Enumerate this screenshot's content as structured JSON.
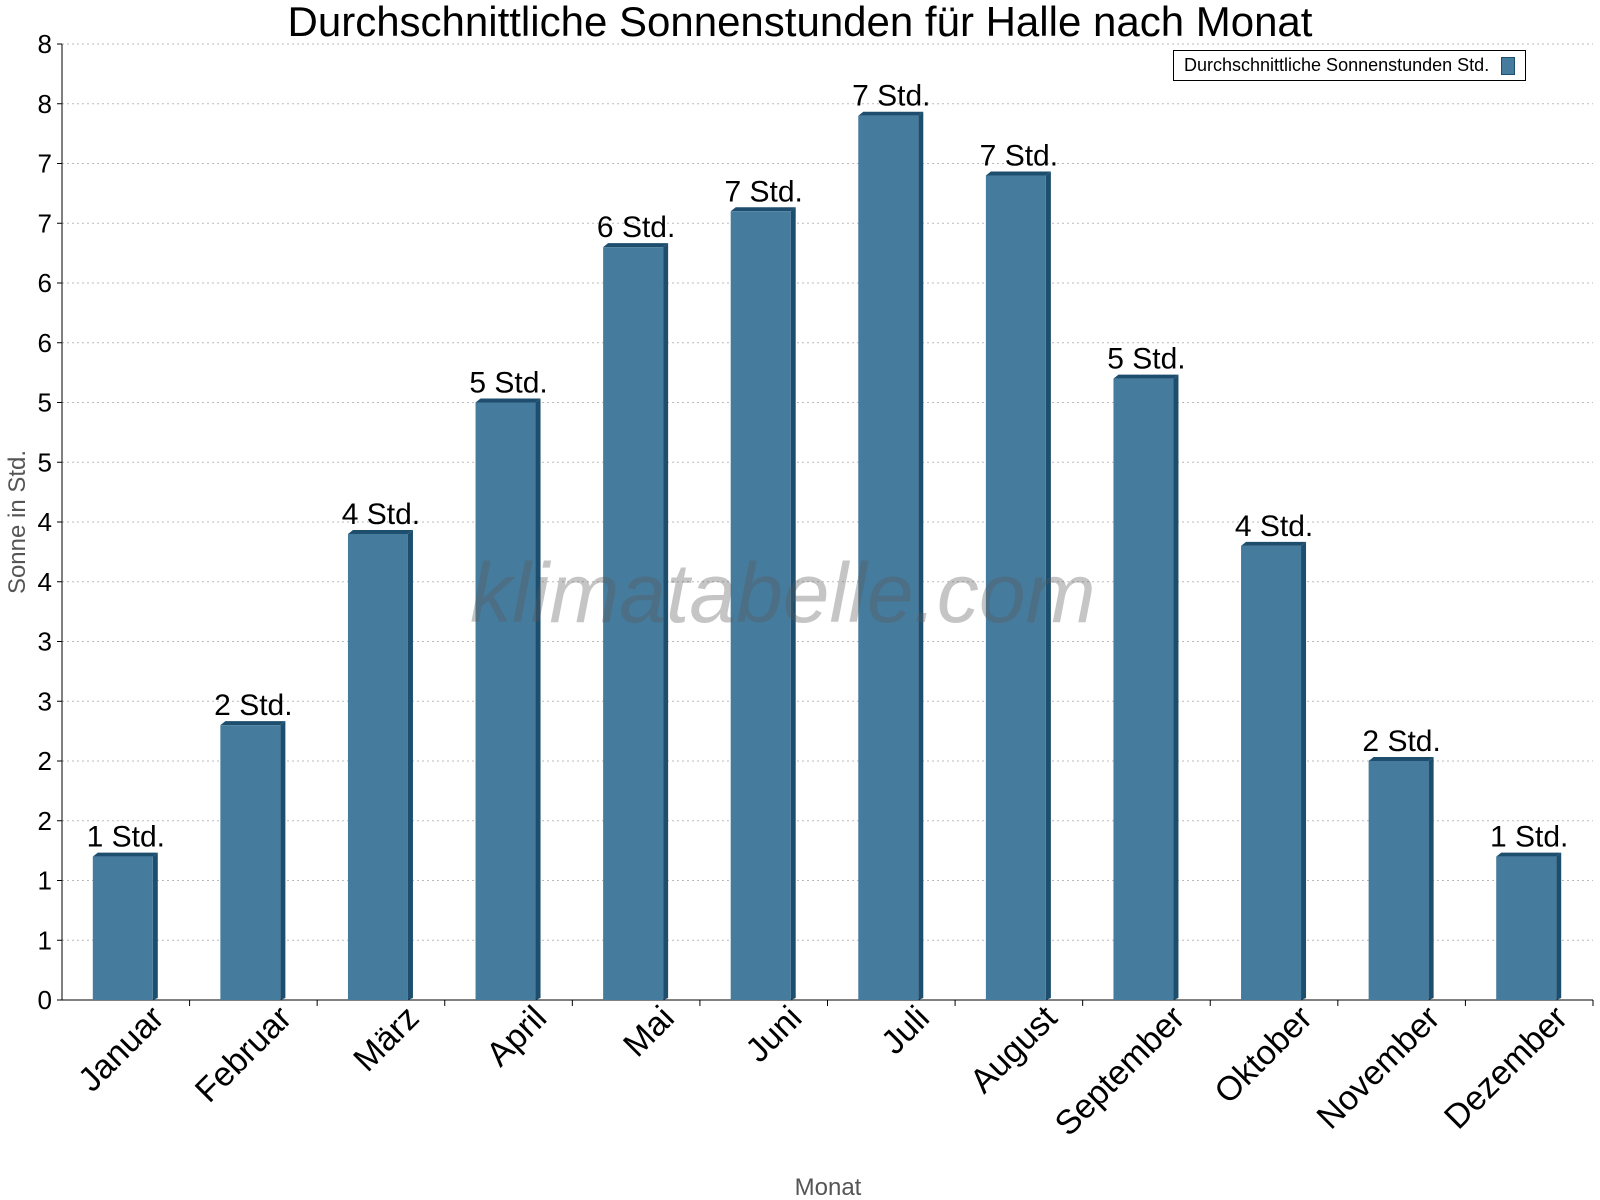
{
  "chart_data": {
    "type": "bar",
    "title": "Durchschnittliche Sonnenstunden für Halle nach Monat",
    "xlabel": "Monat",
    "ylabel": "Sonne in Std.",
    "ylim": [
      0,
      8
    ],
    "yticks": [
      0,
      0.5,
      1,
      1.5,
      2,
      2.5,
      3,
      3.5,
      4,
      4.5,
      5,
      5.5,
      6,
      6.5,
      7,
      7.5,
      8
    ],
    "ytick_labels": [
      "0",
      "1",
      "1",
      "2",
      "2",
      "3",
      "3",
      "4",
      "4",
      "5",
      "5",
      "6",
      "6",
      "7",
      "7",
      "8",
      "8"
    ],
    "categories": [
      "Januar",
      "Februar",
      "März",
      "April",
      "Mai",
      "Juni",
      "Juli",
      "August",
      "September",
      "Oktober",
      "November",
      "Dezember"
    ],
    "series": [
      {
        "name": "Durchschnittliche Sonnenstunden Std.",
        "values": [
          1.2,
          2.3,
          3.9,
          5.0,
          6.3,
          6.6,
          7.4,
          6.9,
          5.2,
          3.8,
          2.0,
          1.2
        ]
      }
    ],
    "data_labels": [
      "1 Std.",
      "2 Std.",
      "4 Std.",
      "5 Std.",
      "6 Std.",
      "7 Std.",
      "7 Std.",
      "7 Std.",
      "5 Std.",
      "4 Std.",
      "2 Std.",
      "1 Std."
    ],
    "legend": "top-right",
    "grid": true,
    "bar_color": "#457b9d",
    "bar_dark": "#1d4e6e"
  },
  "watermark": "klimatabelle.com"
}
